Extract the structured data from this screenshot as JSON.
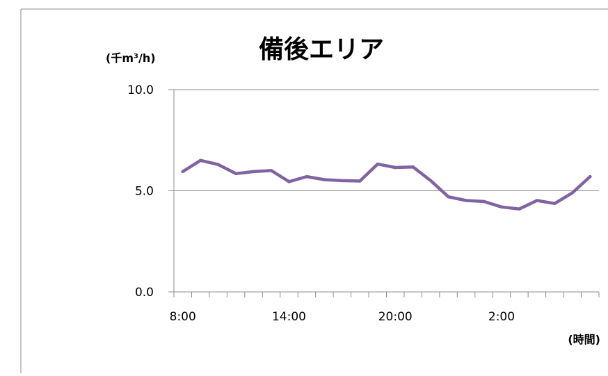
{
  "chart_data": {
    "type": "line",
    "title": "備後エリア",
    "ylabel": "(千m³/h)",
    "xlabel": "(時間)",
    "ylim": [
      0,
      10
    ],
    "yticks": [
      "0.0",
      "5.0",
      "10.0"
    ],
    "ytick_values": [
      0,
      5,
      10
    ],
    "xtick_labels": [
      {
        "index": 0,
        "label": "8:00"
      },
      {
        "index": 6,
        "label": "14:00"
      },
      {
        "index": 12,
        "label": "20:00"
      },
      {
        "index": 18,
        "label": "2:00"
      }
    ],
    "x": [
      "8:00",
      "9:00",
      "10:00",
      "11:00",
      "12:00",
      "13:00",
      "14:00",
      "15:00",
      "16:00",
      "17:00",
      "18:00",
      "19:00",
      "20:00",
      "21:00",
      "22:00",
      "23:00",
      "0:00",
      "1:00",
      "2:00",
      "3:00",
      "4:00",
      "5:00",
      "6:00",
      "7:00"
    ],
    "series": [
      {
        "values": [
          5.95,
          6.5,
          6.3,
          5.85,
          5.95,
          6.0,
          5.45,
          5.7,
          5.55,
          5.5,
          5.48,
          6.32,
          6.15,
          6.18,
          5.5,
          4.7,
          4.52,
          4.47,
          4.2,
          4.1,
          4.52,
          4.37,
          4.9,
          5.7
        ],
        "color": "#8064a2"
      }
    ],
    "grid": true,
    "legend": "none"
  }
}
